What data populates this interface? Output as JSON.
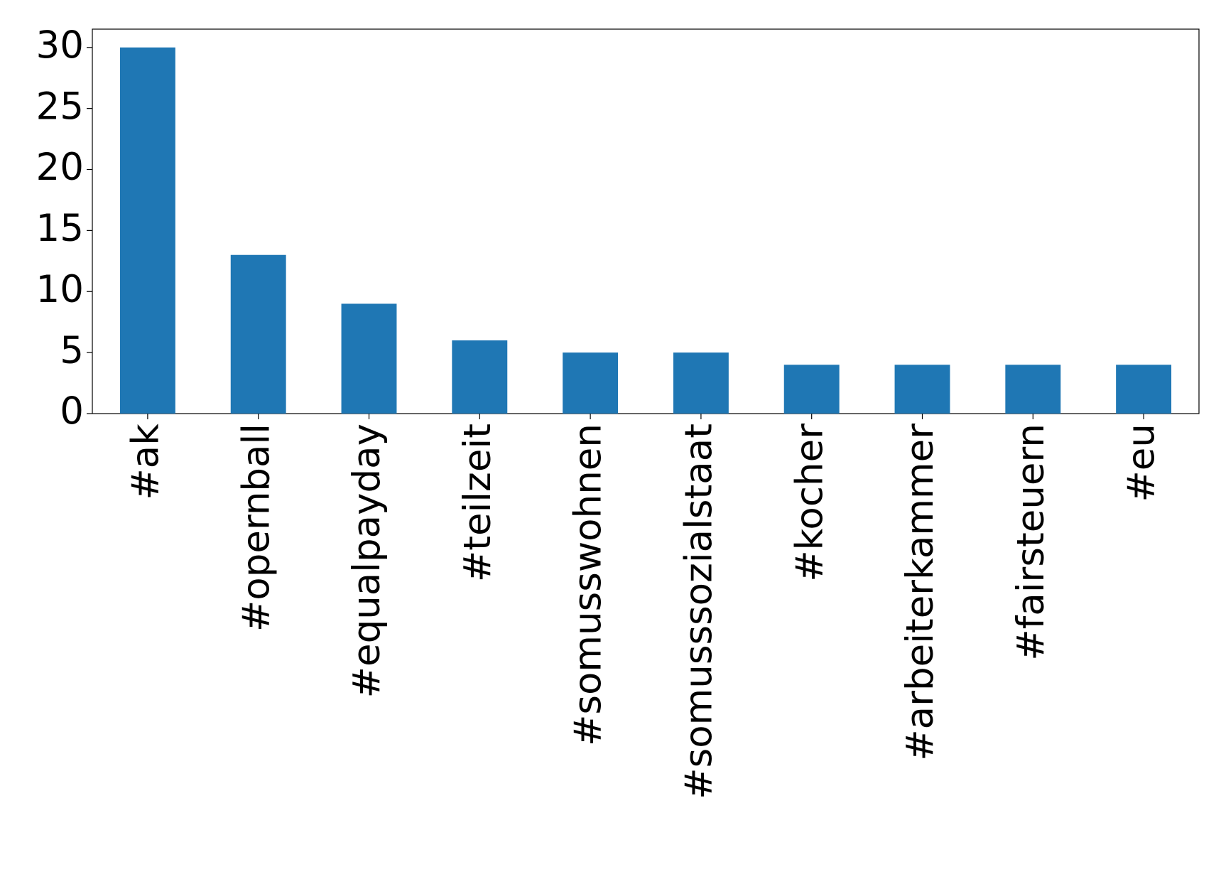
{
  "chart_data": {
    "type": "bar",
    "categories": [
      "#ak",
      "#opernball",
      "#equalpayday",
      "#teilzeit",
      "#somusswohnen",
      "#somusssozialstaat",
      "#kocher",
      "#arbeiterkammer",
      "#fairsteuern",
      "#eu"
    ],
    "values": [
      30,
      13,
      9,
      6,
      5,
      5,
      4,
      4,
      4,
      4
    ],
    "color": "#1f77b4",
    "ylim": [
      0,
      31.5
    ],
    "yticks": [
      0,
      5,
      10,
      15,
      20,
      25,
      30
    ],
    "grid": false
  }
}
